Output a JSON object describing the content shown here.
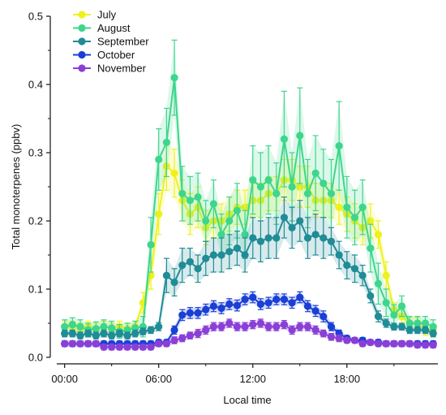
{
  "chart_data": {
    "type": "line",
    "xlabel": "Local time",
    "ylabel": "Total monoterpenes (ppbv)",
    "x_ticks": [
      "00:00",
      "06:00",
      "12:00",
      "18:00"
    ],
    "x_tick_hours": [
      0,
      6,
      12,
      18
    ],
    "xlim": [
      -0.5,
      23.8
    ],
    "ylim": [
      0,
      0.5
    ],
    "y_ticks": [
      0.0,
      0.1,
      0.2,
      0.3,
      0.4,
      0.5
    ],
    "y_tick_labels": [
      "0.0",
      "0.1",
      "0.2",
      "0.3",
      "0.4",
      "0.5"
    ],
    "legend_position": "top-left",
    "x_hours": [
      0,
      0.5,
      1,
      1.5,
      2,
      2.5,
      3,
      3.5,
      4,
      4.5,
      5,
      5.5,
      6,
      6.5,
      7,
      7.5,
      8,
      8.5,
      9,
      9.5,
      10,
      10.5,
      11,
      11.5,
      12,
      12.5,
      13,
      13.5,
      14,
      14.5,
      15,
      15.5,
      16,
      16.5,
      17,
      17.5,
      18,
      18.5,
      19,
      19.5,
      20,
      20.5,
      21,
      21.5,
      22,
      22.5,
      23,
      23.5
    ],
    "series": [
      {
        "name": "July",
        "color": "#eef21a",
        "values": [
          0.045,
          0.045,
          0.042,
          0.045,
          0.042,
          0.045,
          0.042,
          0.045,
          0.042,
          0.045,
          0.08,
          0.12,
          0.21,
          0.28,
          0.27,
          0.23,
          0.21,
          0.22,
          0.19,
          0.2,
          0.2,
          0.21,
          0.22,
          0.22,
          0.23,
          0.23,
          0.24,
          0.24,
          0.26,
          0.26,
          0.25,
          0.25,
          0.23,
          0.23,
          0.23,
          0.22,
          0.21,
          0.2,
          0.19,
          0.2,
          0.18,
          0.12,
          0.07,
          0.06,
          0.05,
          0.05,
          0.04,
          0.04
        ],
        "errors": [
          0.008,
          0.008,
          0.008,
          0.008,
          0.008,
          0.008,
          0.008,
          0.008,
          0.008,
          0.008,
          0.015,
          0.02,
          0.03,
          0.035,
          0.035,
          0.03,
          0.03,
          0.03,
          0.025,
          0.025,
          0.025,
          0.025,
          0.025,
          0.025,
          0.025,
          0.025,
          0.025,
          0.025,
          0.03,
          0.03,
          0.03,
          0.03,
          0.025,
          0.025,
          0.025,
          0.025,
          0.025,
          0.025,
          0.025,
          0.025,
          0.02,
          0.02,
          0.01,
          0.01,
          0.008,
          0.008,
          0.008,
          0.008
        ]
      },
      {
        "name": "August",
        "color": "#3dd68c",
        "values": [
          0.045,
          0.048,
          0.045,
          0.04,
          0.042,
          0.045,
          0.043,
          0.038,
          0.04,
          0.043,
          0.045,
          0.165,
          0.29,
          0.315,
          0.41,
          0.24,
          0.23,
          0.235,
          0.2,
          0.225,
          0.18,
          0.2,
          0.215,
          0.18,
          0.26,
          0.25,
          0.26,
          0.24,
          0.32,
          0.25,
          0.325,
          0.24,
          0.27,
          0.255,
          0.24,
          0.31,
          0.22,
          0.205,
          0.22,
          0.16,
          0.108,
          0.08,
          0.062,
          0.075,
          0.05,
          0.05,
          0.05,
          0.045
        ],
        "errors": [
          0.01,
          0.01,
          0.01,
          0.01,
          0.01,
          0.01,
          0.01,
          0.01,
          0.01,
          0.01,
          0.015,
          0.04,
          0.045,
          0.05,
          0.055,
          0.04,
          0.035,
          0.035,
          0.03,
          0.035,
          0.03,
          0.035,
          0.04,
          0.035,
          0.05,
          0.05,
          0.05,
          0.045,
          0.07,
          0.05,
          0.07,
          0.05,
          0.055,
          0.05,
          0.05,
          0.065,
          0.045,
          0.04,
          0.04,
          0.035,
          0.03,
          0.02,
          0.015,
          0.015,
          0.01,
          0.01,
          0.01,
          0.01
        ]
      },
      {
        "name": "September",
        "color": "#1f8c96",
        "values": [
          0.035,
          0.035,
          0.032,
          0.035,
          0.032,
          0.035,
          0.032,
          0.035,
          0.032,
          0.035,
          0.038,
          0.04,
          0.045,
          0.12,
          0.11,
          0.135,
          0.14,
          0.13,
          0.145,
          0.15,
          0.15,
          0.155,
          0.16,
          0.15,
          0.175,
          0.17,
          0.175,
          0.175,
          0.205,
          0.19,
          0.2,
          0.175,
          0.18,
          0.175,
          0.17,
          0.15,
          0.135,
          0.13,
          0.12,
          0.09,
          0.06,
          0.05,
          0.045,
          0.045,
          0.04,
          0.04,
          0.04,
          0.035
        ],
        "errors": [
          0.005,
          0.005,
          0.005,
          0.005,
          0.005,
          0.005,
          0.005,
          0.005,
          0.005,
          0.005,
          0.005,
          0.005,
          0.006,
          0.025,
          0.02,
          0.025,
          0.02,
          0.02,
          0.025,
          0.025,
          0.025,
          0.025,
          0.025,
          0.025,
          0.03,
          0.03,
          0.03,
          0.03,
          0.03,
          0.03,
          0.03,
          0.03,
          0.03,
          0.03,
          0.02,
          0.02,
          0.02,
          0.02,
          0.015,
          0.01,
          0.008,
          0.006,
          0.005,
          0.005,
          0.005,
          0.005,
          0.005,
          0.005
        ]
      },
      {
        "name": "October",
        "color": "#1a3fd6",
        "values": [
          0.02,
          0.02,
          0.02,
          0.02,
          0.02,
          0.02,
          0.02,
          0.02,
          0.02,
          0.02,
          0.02,
          0.02,
          0.022,
          0.022,
          0.04,
          0.062,
          0.065,
          0.065,
          0.07,
          0.075,
          0.072,
          0.078,
          0.076,
          0.085,
          0.088,
          0.078,
          0.08,
          0.085,
          0.085,
          0.08,
          0.088,
          0.075,
          0.068,
          0.06,
          0.045,
          0.035,
          0.028,
          0.025,
          0.025,
          0.022,
          0.022,
          0.02,
          0.02,
          0.02,
          0.02,
          0.02,
          0.02,
          0.02
        ],
        "errors": [
          0.004,
          0.004,
          0.004,
          0.004,
          0.004,
          0.004,
          0.004,
          0.004,
          0.004,
          0.004,
          0.004,
          0.004,
          0.004,
          0.004,
          0.006,
          0.008,
          0.008,
          0.008,
          0.008,
          0.008,
          0.008,
          0.008,
          0.008,
          0.008,
          0.008,
          0.008,
          0.008,
          0.008,
          0.008,
          0.008,
          0.008,
          0.008,
          0.008,
          0.008,
          0.006,
          0.005,
          0.004,
          0.004,
          0.004,
          0.004,
          0.004,
          0.004,
          0.004,
          0.004,
          0.004,
          0.004,
          0.004,
          0.004
        ]
      },
      {
        "name": "November",
        "color": "#8a3fd6",
        "values": [
          0.02,
          0.02,
          0.02,
          0.02,
          0.02,
          0.015,
          0.015,
          0.015,
          0.015,
          0.015,
          0.015,
          0.015,
          0.02,
          0.02,
          0.025,
          0.028,
          0.032,
          0.035,
          0.04,
          0.045,
          0.045,
          0.05,
          0.045,
          0.045,
          0.048,
          0.05,
          0.045,
          0.045,
          0.048,
          0.04,
          0.045,
          0.045,
          0.04,
          0.035,
          0.03,
          0.028,
          0.025,
          0.025,
          0.02,
          0.022,
          0.02,
          0.02,
          0.02,
          0.02,
          0.02,
          0.018,
          0.018,
          0.018
        ],
        "errors": [
          0.004,
          0.004,
          0.004,
          0.004,
          0.004,
          0.004,
          0.004,
          0.004,
          0.004,
          0.004,
          0.004,
          0.004,
          0.004,
          0.004,
          0.005,
          0.005,
          0.005,
          0.006,
          0.006,
          0.006,
          0.006,
          0.006,
          0.006,
          0.006,
          0.006,
          0.006,
          0.006,
          0.006,
          0.006,
          0.006,
          0.006,
          0.006,
          0.006,
          0.005,
          0.005,
          0.005,
          0.004,
          0.004,
          0.004,
          0.004,
          0.004,
          0.004,
          0.004,
          0.004,
          0.004,
          0.004,
          0.004,
          0.004
        ]
      }
    ]
  }
}
